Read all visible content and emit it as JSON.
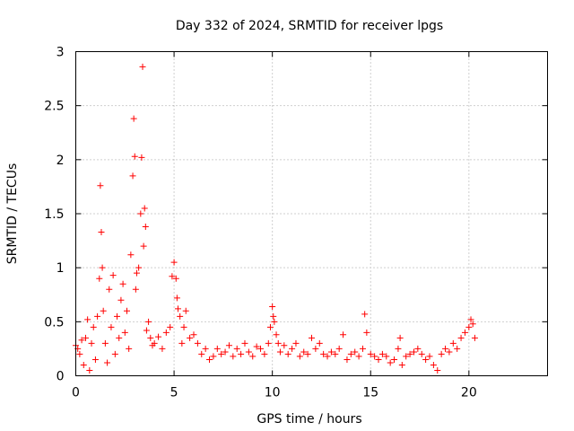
{
  "chart_data": {
    "type": "scatter",
    "title": "Day 332 of 2024, SRMTID for receiver lpgs",
    "xlabel": "GPS time / hours",
    "ylabel": "SRMTID / TECUs",
    "xlim": [
      0,
      24
    ],
    "ylim": [
      0,
      3
    ],
    "xticks": [
      0,
      5,
      10,
      15,
      20
    ],
    "yticks": [
      0,
      0.5,
      1,
      1.5,
      2,
      2.5,
      3
    ],
    "xtick_labels": [
      "0",
      "5",
      "10",
      "15",
      "20"
    ],
    "ytick_labels": [
      "0",
      "0.5",
      "1",
      "1.5",
      "2",
      "2.5",
      "3"
    ],
    "grid": true,
    "marker": "+",
    "series": [
      {
        "name": "lpgs",
        "color": "#ff0000",
        "x": [
          0.0,
          0.1,
          0.2,
          0.3,
          0.4,
          0.5,
          0.6,
          0.7,
          0.8,
          0.9,
          1.0,
          1.1,
          1.2,
          1.25,
          1.3,
          1.35,
          1.4,
          1.5,
          1.6,
          1.7,
          1.8,
          1.9,
          2.0,
          2.1,
          2.2,
          2.3,
          2.4,
          2.5,
          2.6,
          2.7,
          2.8,
          2.9,
          2.95,
          3.0,
          3.05,
          3.1,
          3.2,
          3.3,
          3.35,
          3.4,
          3.45,
          3.5,
          3.55,
          3.6,
          3.7,
          3.8,
          3.9,
          4.0,
          4.2,
          4.4,
          4.6,
          4.8,
          4.9,
          5.0,
          5.1,
          5.15,
          5.2,
          5.3,
          5.4,
          5.5,
          5.6,
          5.8,
          6.0,
          6.2,
          6.4,
          6.6,
          6.8,
          7.0,
          7.2,
          7.4,
          7.6,
          7.8,
          8.0,
          8.2,
          8.4,
          8.6,
          8.8,
          9.0,
          9.2,
          9.4,
          9.6,
          9.8,
          9.9,
          10.0,
          10.05,
          10.1,
          10.2,
          10.3,
          10.4,
          10.6,
          10.8,
          11.0,
          11.2,
          11.4,
          11.6,
          11.8,
          12.0,
          12.2,
          12.4,
          12.6,
          12.8,
          13.0,
          13.2,
          13.4,
          13.6,
          13.8,
          14.0,
          14.2,
          14.4,
          14.6,
          14.7,
          14.8,
          15.0,
          15.2,
          15.4,
          15.6,
          15.8,
          16.0,
          16.2,
          16.4,
          16.5,
          16.6,
          16.8,
          17.0,
          17.2,
          17.4,
          17.6,
          17.8,
          18.0,
          18.2,
          18.4,
          18.6,
          18.8,
          19.0,
          19.2,
          19.4,
          19.6,
          19.8,
          20.0,
          20.1,
          20.2,
          20.3
        ],
        "y": [
          0.28,
          0.25,
          0.2,
          0.33,
          0.1,
          0.35,
          0.52,
          0.05,
          0.3,
          0.45,
          0.15,
          0.55,
          0.9,
          1.76,
          1.33,
          1.0,
          0.6,
          0.3,
          0.12,
          0.8,
          0.45,
          0.93,
          0.2,
          0.55,
          0.35,
          0.7,
          0.85,
          0.4,
          0.6,
          0.25,
          1.12,
          1.85,
          2.38,
          2.03,
          0.8,
          0.95,
          1.0,
          1.5,
          2.02,
          2.86,
          1.2,
          1.55,
          1.38,
          0.42,
          0.5,
          0.35,
          0.28,
          0.3,
          0.36,
          0.25,
          0.4,
          0.45,
          0.92,
          1.05,
          0.9,
          0.72,
          0.62,
          0.55,
          0.3,
          0.45,
          0.6,
          0.35,
          0.38,
          0.3,
          0.2,
          0.25,
          0.15,
          0.18,
          0.25,
          0.2,
          0.22,
          0.28,
          0.18,
          0.25,
          0.2,
          0.3,
          0.22,
          0.18,
          0.27,
          0.25,
          0.2,
          0.3,
          0.45,
          0.64,
          0.55,
          0.5,
          0.38,
          0.3,
          0.22,
          0.28,
          0.2,
          0.25,
          0.3,
          0.18,
          0.22,
          0.2,
          0.35,
          0.25,
          0.3,
          0.2,
          0.18,
          0.22,
          0.2,
          0.25,
          0.38,
          0.15,
          0.2,
          0.22,
          0.18,
          0.25,
          0.57,
          0.4,
          0.2,
          0.18,
          0.15,
          0.2,
          0.18,
          0.12,
          0.15,
          0.25,
          0.35,
          0.1,
          0.18,
          0.2,
          0.22,
          0.25,
          0.2,
          0.15,
          0.18,
          0.1,
          0.05,
          0.2,
          0.25,
          0.22,
          0.3,
          0.25,
          0.35,
          0.4,
          0.45,
          0.52,
          0.48,
          0.35
        ]
      }
    ]
  }
}
